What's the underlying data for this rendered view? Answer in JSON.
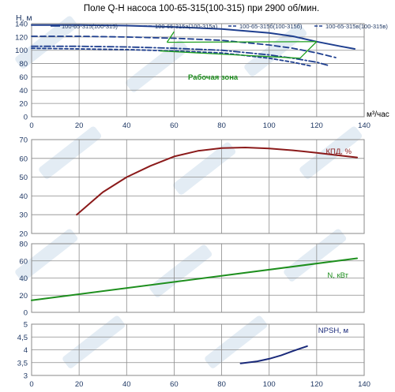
{
  "chart_data": [
    {
      "type": "line",
      "title": "Поле Q-H насоса 100-65-315(100-315) при 2900 об/мин.",
      "ylabel": "H, м",
      "xlabel": "м³/час",
      "xlim": [
        0,
        140
      ],
      "ylim": [
        0,
        140
      ],
      "x_ticks": [
        0,
        20,
        40,
        60,
        80,
        100,
        120,
        140
      ],
      "y_ticks": [
        0,
        20,
        40,
        60,
        80,
        100,
        120,
        140
      ],
      "grid": true,
      "legend": "top",
      "annotation": "Рабочая зона",
      "series": [
        {
          "name": "100-65-315(100-315)",
          "style": "solid",
          "color": "#1f3f8f",
          "x": [
            0,
            20,
            40,
            60,
            80,
            100,
            110,
            120,
            130,
            136
          ],
          "y": [
            138,
            138,
            137,
            135,
            132,
            126,
            121,
            113,
            106,
            102
          ]
        },
        {
          "name": "100-65-315а(100-315а)",
          "style": "dashed",
          "color": "#1f3f8f",
          "x": [
            0,
            20,
            40,
            60,
            80,
            100,
            110,
            120,
            128
          ],
          "y": [
            121,
            121,
            120,
            118,
            115,
            108,
            103,
            96,
            89
          ]
        },
        {
          "name": "100-65-315б(100-315б)",
          "style": "dashdot",
          "color": "#1f3f8f",
          "x": [
            0,
            20,
            40,
            60,
            80,
            100,
            110,
            120,
            125
          ],
          "y": [
            106,
            106,
            105,
            103,
            100,
            93,
            88,
            82,
            77
          ]
        },
        {
          "name": "100-65-315в(100-315в)",
          "style": "dashed-heavy",
          "color": "#1f3f8f",
          "x": [
            0,
            20,
            40,
            60,
            80,
            100,
            110,
            118
          ],
          "y": [
            103,
            102,
            101,
            99,
            96,
            88,
            82,
            76
          ]
        }
      ],
      "work_zone": {
        "color": "#1fa01f",
        "left": {
          "x": [
            57,
            60
          ],
          "y": [
            112,
            128
          ]
        },
        "right": {
          "x": [
            113,
            120
          ],
          "y": [
            88,
            113
          ]
        },
        "top": {
          "x": [
            57,
            120
          ],
          "y": [
            112,
            113
          ]
        },
        "bottom": {
          "x": [
            54,
            113
          ],
          "y": [
            99,
            88
          ]
        }
      }
    },
    {
      "type": "line",
      "ylabel": "",
      "xlim": [
        0,
        140
      ],
      "ylim": [
        20,
        70
      ],
      "y_ticks": [
        20,
        30,
        40,
        50,
        60,
        70
      ],
      "grid": true,
      "series": [
        {
          "name": "КПД, %",
          "color": "#8b1a1a",
          "x": [
            19,
            30,
            40,
            50,
            60,
            70,
            80,
            90,
            100,
            110,
            120,
            130,
            137
          ],
          "y": [
            30,
            42,
            50,
            56,
            61,
            64,
            65.5,
            65.8,
            65.3,
            64.3,
            63,
            61.5,
            60.5
          ]
        }
      ]
    },
    {
      "type": "line",
      "ylabel": "",
      "xlim": [
        0,
        140
      ],
      "ylim": [
        0,
        80
      ],
      "y_ticks": [
        0,
        20,
        40,
        60,
        80
      ],
      "grid": true,
      "series": [
        {
          "name": "N, кВт",
          "color": "#1e8f1e",
          "x": [
            0,
            137
          ],
          "y": [
            14,
            63
          ]
        }
      ]
    },
    {
      "type": "line",
      "ylabel": "",
      "xlim": [
        0,
        140
      ],
      "ylim": [
        3,
        5
      ],
      "y_ticks": [
        3,
        3.5,
        4,
        4.5,
        5
      ],
      "y_tick_labels": [
        "3",
        "3,5",
        "4",
        "4,5",
        "5"
      ],
      "x_ticks": [
        0,
        20,
        40,
        60,
        80,
        100,
        120,
        140
      ],
      "grid": true,
      "series": [
        {
          "name": "NPSH, м",
          "color": "#1a2a7a",
          "x": [
            88,
            95,
            100,
            105,
            110,
            116
          ],
          "y": [
            3.47,
            3.55,
            3.65,
            3.78,
            3.95,
            4.14
          ]
        }
      ]
    }
  ]
}
